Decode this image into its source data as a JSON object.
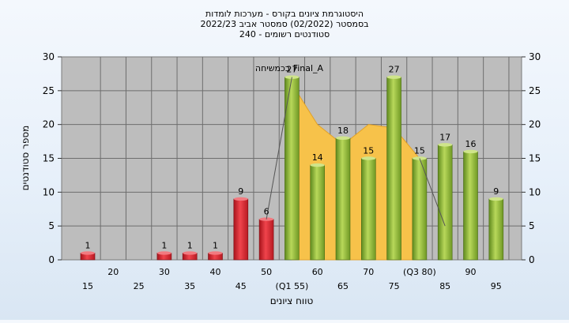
{
  "chart_data": {
    "type": "bar",
    "title_lines": [
      "היסטוגרמת ציונים בקורס - מערכות לומדות",
      "בסמסטר  (02/2022)  סמסטר אביב 2022/23",
      "240 - סטודנטים רשומים"
    ],
    "xlabel": "טווח ציונים",
    "ylabel": "מספר סטודנטים",
    "ylim": [
      0,
      30
    ],
    "y_ticks": [
      0,
      5,
      10,
      15,
      20,
      25,
      30
    ],
    "categories": [
      "15",
      "20",
      "25",
      "30",
      "35",
      "40",
      "45",
      "50",
      "55",
      "60",
      "65",
      "70",
      "75",
      "80",
      "85",
      "90",
      "95"
    ],
    "x_tick_labels": [
      "15",
      "20",
      "25",
      "30",
      "35",
      "40",
      "45",
      "50",
      "(Q1 55)",
      "60",
      "65",
      "70",
      "75",
      "(Q3 80)",
      "85",
      "90",
      "95"
    ],
    "values": [
      1,
      0,
      0,
      1,
      1,
      1,
      9,
      6,
      27,
      14,
      18,
      15,
      27,
      15,
      17,
      16,
      9
    ],
    "bar_colors": [
      "red",
      "none",
      "none",
      "red",
      "red",
      "red",
      "red",
      "red",
      "green",
      "green",
      "green",
      "green",
      "green",
      "green",
      "green",
      "green",
      "green"
    ],
    "area_series": {
      "name": "Final_A",
      "values": [
        null,
        null,
        null,
        null,
        null,
        null,
        null,
        null,
        26,
        20,
        17,
        20,
        19.5,
        15,
        null,
        null,
        null
      ]
    },
    "line_segments": [
      [
        {
          "x": "50",
          "y": 6
        },
        {
          "x": "55",
          "y": 27
        }
      ],
      [
        {
          "x": "80",
          "y": 15
        },
        {
          "x": "85",
          "y": 5
        }
      ]
    ],
    "annotation": "בכמשיחה Final_A",
    "grid": true,
    "colors": {
      "plot_bg": "#bdbdbd",
      "red_bar": "#e8303a",
      "green_bar": "#9bc13c",
      "area_fill": "#f7c24a",
      "grid": "#6e6e6e"
    }
  }
}
